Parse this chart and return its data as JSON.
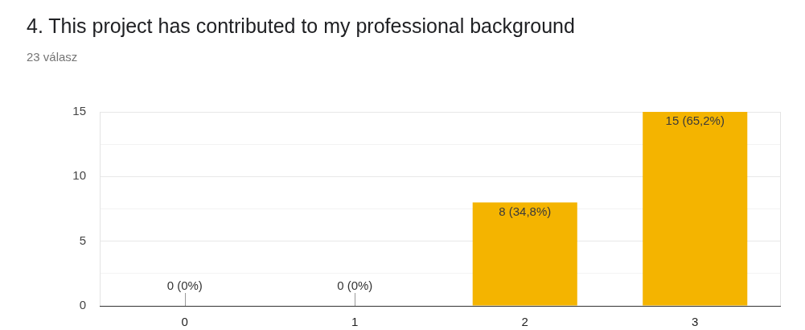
{
  "chart_data": {
    "type": "bar",
    "title": "4. This project has contributed to my professional background",
    "subtitle": "23 válasz",
    "categories": [
      "0",
      "1",
      "2",
      "3"
    ],
    "values": [
      0,
      0,
      8,
      15
    ],
    "color": "#f4b400",
    "value_labels": [
      "0 (0%)",
      "0 (0%)",
      "8 (34,8%)",
      "15 (65,2%)"
    ],
    "ylim": [
      0,
      15
    ],
    "yticks": [
      0,
      {
        "value": 2.5,
        "label": null
      },
      5,
      {
        "value": 7.5,
        "label": null
      },
      10,
      {
        "value": 12.5,
        "label": null
      },
      15
    ],
    "grid": "y",
    "legend": false
  }
}
